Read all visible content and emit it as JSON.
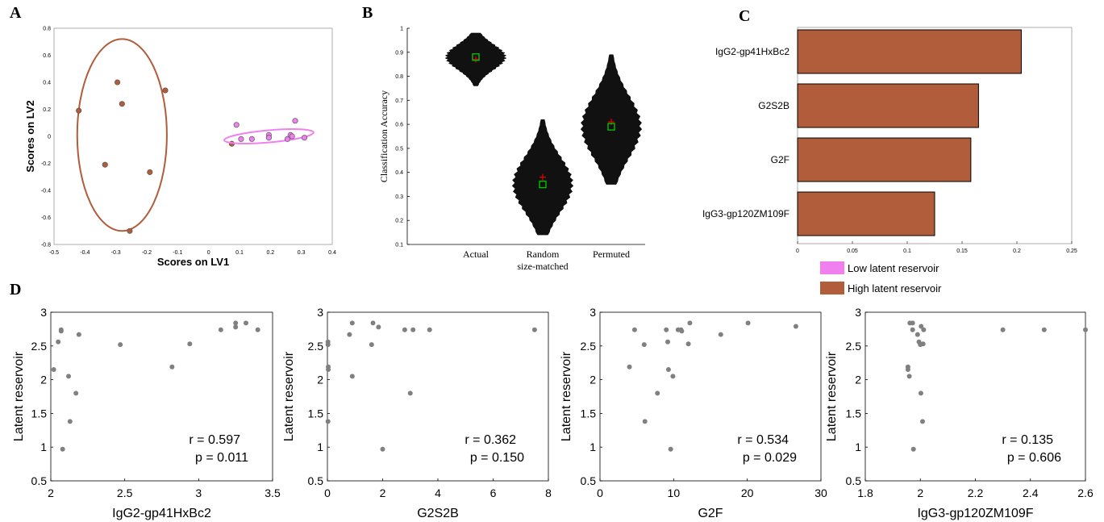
{
  "colors": {
    "low": "#F080F0",
    "high": "#B15C3A",
    "scatter_dot": "#808080",
    "violin": "#111111",
    "median_marker": "#00C000",
    "mean_marker": "#E00000"
  },
  "panels": {
    "A": "A",
    "B": "B",
    "C": "C",
    "D": "D"
  },
  "legend": {
    "low_label": "Low latent reservoir",
    "high_label": "High latent reservoir"
  },
  "chart_data": [
    {
      "id": "A",
      "type": "scatter",
      "xlabel": "Scores on LV1",
      "ylabel": "Scores on LV2",
      "xlim": [
        -0.5,
        0.4
      ],
      "ylim": [
        -0.8,
        0.8
      ],
      "xticks": [
        "-0.5",
        "-0.4",
        "-0.3",
        "-0.2",
        "-0.1",
        "0",
        "0.1",
        "0.2",
        "0.3",
        "0.4"
      ],
      "yticks": [
        "-0.8",
        "-0.6",
        "-0.4",
        "-0.2",
        "0",
        "0.2",
        "0.4",
        "0.6",
        "0.8"
      ],
      "series": [
        {
          "group": "high",
          "points": [
            [
              -0.42,
              0.19
            ],
            [
              -0.295,
              0.4
            ],
            [
              -0.28,
              0.24
            ],
            [
              -0.14,
              0.34
            ],
            [
              -0.335,
              -0.21
            ],
            [
              -0.19,
              -0.265
            ],
            [
              -0.255,
              -0.7
            ],
            [
              0.075,
              -0.055
            ]
          ],
          "ellipse": {
            "cx": -0.28,
            "cy": 0.01,
            "rx": 0.145,
            "ry": 0.71
          }
        },
        {
          "group": "low",
          "points": [
            [
              0.09,
              0.085
            ],
            [
              0.105,
              -0.02
            ],
            [
              0.14,
              -0.02
            ],
            [
              0.195,
              0.01
            ],
            [
              0.195,
              -0.01
            ],
            [
              0.255,
              -0.02
            ],
            [
              0.265,
              0.01
            ],
            [
              0.27,
              0.0
            ],
            [
              0.28,
              0.115
            ],
            [
              0.31,
              -0.01
            ]
          ],
          "ellipse": {
            "cx": 0.195,
            "cy": 0.0,
            "rx": 0.145,
            "ry": 0.045,
            "angle": 5
          }
        }
      ]
    },
    {
      "id": "B",
      "type": "violin",
      "ylabel": "Classification Accuracy",
      "ylim": [
        0.1,
        1.0
      ],
      "yticks": [
        "0.1",
        "0.2",
        "0.3",
        "0.4",
        "0.5",
        "0.6",
        "0.7",
        "0.8",
        "0.9",
        "1"
      ],
      "categories": [
        "Actual",
        "Random size-matched",
        "Permuted"
      ],
      "category_labels": [
        [
          "Actual"
        ],
        [
          "Random",
          "size-matched"
        ],
        [
          "Permuted"
        ]
      ],
      "violins": [
        {
          "name": "Actual",
          "min": 0.76,
          "max": 0.98,
          "median": 0.88,
          "mean": 0.87
        },
        {
          "name": "Random size-matched",
          "min": 0.14,
          "max": 0.62,
          "median": 0.35,
          "mean": 0.38
        },
        {
          "name": "Permuted",
          "min": 0.35,
          "max": 0.89,
          "median": 0.59,
          "mean": 0.61
        }
      ]
    },
    {
      "id": "C",
      "type": "bar",
      "orientation": "horizontal",
      "categories": [
        "IgG2-gp41HxBc2",
        "G2S2B",
        "G2F",
        "IgG3-gp120ZM109F"
      ],
      "values": [
        0.204,
        0.165,
        0.158,
        0.125
      ],
      "xlim": [
        0,
        0.25
      ],
      "xticks": [
        "0",
        "0.05",
        "0.1",
        "0.15",
        "0.2",
        "0.25"
      ]
    },
    {
      "id": "D1",
      "type": "scatter",
      "xlabel": "IgG2-gp41HxBc2",
      "ylabel": "Latent reservoir",
      "xlim": [
        2,
        3.5
      ],
      "ylim": [
        0.5,
        3
      ],
      "xticks": [
        "2",
        "2.5",
        "3",
        "3.5"
      ],
      "yticks": [
        "0.5",
        "1",
        "1.5",
        "2",
        "2.5",
        "3"
      ],
      "r_text": "r = 0.597",
      "p_text": "p = 0.011",
      "points": [
        [
          2.02,
          2.15
        ],
        [
          2.05,
          2.56
        ],
        [
          2.07,
          2.72
        ],
        [
          2.07,
          2.74
        ],
        [
          2.08,
          0.97
        ],
        [
          2.12,
          2.05
        ],
        [
          2.13,
          1.38
        ],
        [
          2.17,
          1.8
        ],
        [
          2.19,
          2.67
        ],
        [
          2.47,
          2.52
        ],
        [
          2.82,
          2.19
        ],
        [
          2.94,
          2.53
        ],
        [
          3.15,
          2.74
        ],
        [
          3.25,
          2.78
        ],
        [
          3.25,
          2.84
        ],
        [
          3.32,
          2.84
        ],
        [
          3.4,
          2.74
        ]
      ]
    },
    {
      "id": "D2",
      "type": "scatter",
      "xlabel": "G2S2B",
      "ylabel": "Latent reservoir",
      "xlim": [
        0,
        8
      ],
      "ylim": [
        0.5,
        3
      ],
      "xticks": [
        "0",
        "2",
        "4",
        "6",
        "8"
      ],
      "yticks": [
        "0.5",
        "1",
        "1.5",
        "2",
        "2.5",
        "3"
      ],
      "r_text": "r = 0.362",
      "p_text": "p = 0.150",
      "points": [
        [
          0.02,
          2.56
        ],
        [
          0.02,
          2.52
        ],
        [
          0.03,
          2.19
        ],
        [
          0.03,
          2.15
        ],
        [
          0.02,
          1.38
        ],
        [
          0.8,
          2.67
        ],
        [
          0.9,
          2.84
        ],
        [
          0.9,
          2.05
        ],
        [
          1.6,
          2.52
        ],
        [
          1.65,
          2.84
        ],
        [
          1.85,
          2.78
        ],
        [
          2.0,
          0.97
        ],
        [
          2.8,
          2.74
        ],
        [
          3.0,
          1.8
        ],
        [
          3.1,
          2.74
        ],
        [
          3.7,
          2.74
        ],
        [
          7.5,
          2.74
        ]
      ]
    },
    {
      "id": "D3",
      "type": "scatter",
      "xlabel": "G2F",
      "ylabel": "Latent reservoir",
      "xlim": [
        0,
        30
      ],
      "ylim": [
        0.5,
        3
      ],
      "xticks": [
        "0",
        "10",
        "20",
        "30"
      ],
      "yticks": [
        "0.5",
        "1",
        "1.5",
        "2",
        "2.5",
        "3"
      ],
      "r_text": "r = 0.534",
      "p_text": "p = 0.029",
      "points": [
        [
          4.0,
          2.19
        ],
        [
          4.7,
          2.74
        ],
        [
          6.0,
          2.52
        ],
        [
          6.1,
          1.38
        ],
        [
          7.8,
          1.8
        ],
        [
          9.0,
          2.74
        ],
        [
          9.2,
          2.56
        ],
        [
          9.3,
          2.15
        ],
        [
          9.6,
          0.97
        ],
        [
          9.9,
          2.05
        ],
        [
          10.6,
          2.74
        ],
        [
          11.0,
          2.74
        ],
        [
          11.1,
          2.72
        ],
        [
          12.0,
          2.53
        ],
        [
          12.2,
          2.84
        ],
        [
          16.4,
          2.67
        ],
        [
          20.1,
          2.84
        ],
        [
          26.6,
          2.79
        ]
      ]
    },
    {
      "id": "D4",
      "type": "scatter",
      "xlabel": "IgG3-gp120ZM109F",
      "ylabel": "Latent reservoir",
      "xlim": [
        1.8,
        2.6
      ],
      "ylim": [
        0.5,
        3
      ],
      "xticks": [
        "1.8",
        "2",
        "2.2",
        "2.4",
        "2.6"
      ],
      "yticks": [
        "0.5",
        "1",
        "1.5",
        "2",
        "2.5",
        "3"
      ],
      "r_text": "r = 0.135",
      "p_text": "p = 0.606",
      "points": [
        [
          1.955,
          2.19
        ],
        [
          1.955,
          2.15
        ],
        [
          1.96,
          2.05
        ],
        [
          1.962,
          2.84
        ],
        [
          1.972,
          2.84
        ],
        [
          1.972,
          2.74
        ],
        [
          1.975,
          0.97
        ],
        [
          1.99,
          2.67
        ],
        [
          1.995,
          2.56
        ],
        [
          2.0,
          2.52
        ],
        [
          2.002,
          1.8
        ],
        [
          2.003,
          2.79
        ],
        [
          2.008,
          1.38
        ],
        [
          2.01,
          2.53
        ],
        [
          2.012,
          2.74
        ],
        [
          2.3,
          2.74
        ],
        [
          2.45,
          2.74
        ],
        [
          2.6,
          2.74
        ]
      ]
    }
  ]
}
